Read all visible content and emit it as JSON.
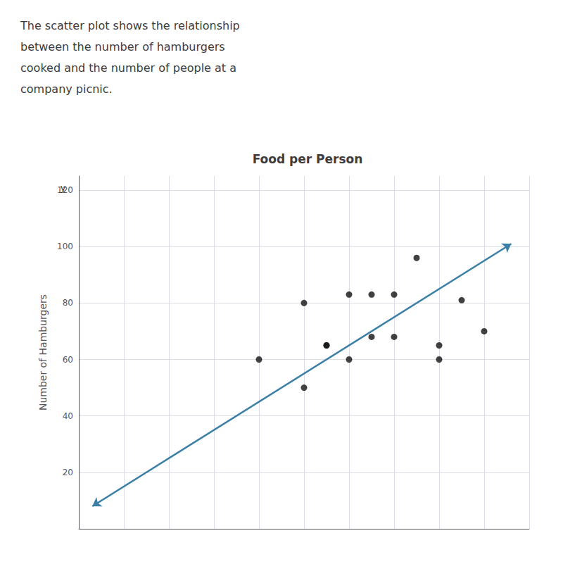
{
  "chart_data": {
    "type": "scatter",
    "title": "Food per Person",
    "ylabel": "Number of Hamburgers",
    "description": [
      "The scatter plot shows the relationship",
      "between the number of hamburgers",
      "cooked and the number of people at a",
      "company picnic."
    ],
    "annotations": [
      {
        "text": "y",
        "x": -3.5,
        "y": 121
      }
    ],
    "x": [
      40,
      50,
      50,
      55,
      55,
      60,
      60,
      65,
      65,
      70,
      70,
      75,
      80,
      80,
      85,
      90
    ],
    "values": [
      60,
      50,
      80,
      65,
      65,
      60,
      83,
      68,
      83,
      83,
      68,
      96,
      60,
      65,
      81,
      70
    ],
    "color": "#111111",
    "fit_line": {
      "x": [
        96,
        3
      ],
      "y": [
        101,
        8
      ],
      "color": "#3a7fa8",
      "marker": "arrow"
    },
    "xlim": [
      0,
      100
    ],
    "xticks": [
      0,
      10,
      20,
      30,
      40,
      50,
      60,
      70,
      80,
      90,
      100
    ],
    "ylim": [
      0,
      125
    ],
    "yticks": [
      20,
      40,
      60,
      80,
      100,
      120
    ],
    "grid": true,
    "tick_labels": "y"
  }
}
